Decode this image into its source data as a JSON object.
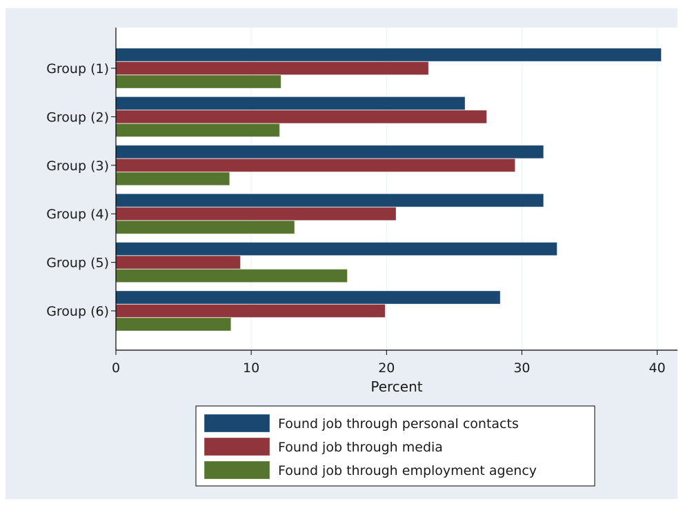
{
  "chart_data": {
    "type": "bar",
    "orientation": "horizontal",
    "categories": [
      "Group (1)",
      "Group (2)",
      "Group (3)",
      "Group (4)",
      "Group (5)",
      "Group (6)"
    ],
    "series": [
      {
        "name": "Found job through personal contacts",
        "color": "#1a476f",
        "values": [
          40.3,
          25.8,
          31.6,
          31.6,
          32.6,
          28.4
        ]
      },
      {
        "name": "Found job through media",
        "color": "#90353b",
        "values": [
          23.1,
          27.4,
          29.5,
          20.7,
          9.2,
          19.9
        ]
      },
      {
        "name": "Found job through employment agency",
        "color": "#55752f",
        "values": [
          12.2,
          12.1,
          8.4,
          13.2,
          17.1,
          8.5
        ]
      }
    ],
    "xlabel": "Percent",
    "xlim": [
      0,
      41.5
    ],
    "xticks": [
      0,
      10,
      20,
      30,
      40
    ],
    "grid": true,
    "legend_position": "bottom",
    "colors": {
      "outer_background": "#e8eef4",
      "plot_background": "#ffffff",
      "grid": "#eaf0f6"
    }
  }
}
